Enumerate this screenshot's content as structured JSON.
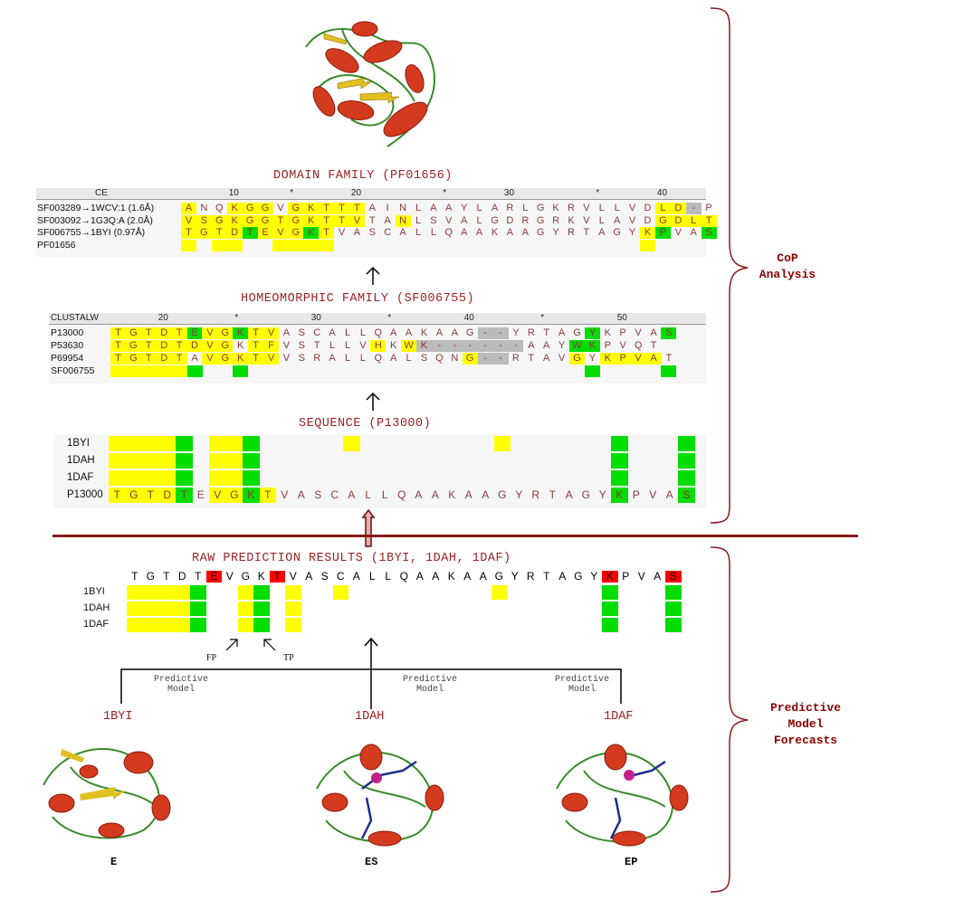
{
  "titles": {
    "domain": "DOMAIN FAMILY (PF01656)",
    "homeo": "HOMEOMORPHIC FAMILY (SF006755)",
    "sequence": "SEQUENCE (P13000)",
    "raw": "RAW PREDICTION RESULTS (1BYI, 1DAH, 1DAF)"
  },
  "side_labels": {
    "cop": "CoP\nAnalysis",
    "predictive": "Predictive\nModel\nForecasts"
  },
  "domain_panel": {
    "ruler_label": "CE",
    "ruler_marks": [
      "10",
      "*",
      "20",
      "*",
      "30",
      "*",
      "40"
    ],
    "rows": [
      {
        "label": "SF003289→1WCV:1 (1.6Å)",
        "seq": "ANQKGGVGKTTTAINLAAYLARLGKRVLLVDLD-P"
      },
      {
        "label": "SF003092→1G3Q:A (2.0Å)",
        "seq": "VSGKGGTGKTTVTANLSVALGDRGRKVLAVDGDLT"
      },
      {
        "label": "SF006755→1BYI (0.97Å)",
        "seq": "TGTDTEVGKTVASCALLQAAKAAGYRTAGYKPVAS"
      },
      {
        "label": "PF01656",
        "seq": ""
      }
    ]
  },
  "homeo_panel": {
    "ruler_label": "CLUSTALW",
    "ruler_marks": [
      "20",
      "*",
      "30",
      "*",
      "40",
      "*",
      "50"
    ],
    "rows": [
      {
        "label": "P13000",
        "seq": "TGTDTEVGKTVASCALLQAAKAAG--YRTAGYKPVAS"
      },
      {
        "label": "P53630",
        "seq": "TGTDTDVGKTFVSTLLVHKWK------AAYWKPVQT"
      },
      {
        "label": "P69954",
        "seq": "TGTDTAVGKTVVSRALLQALSQNG--RTAVGYKPVAT"
      },
      {
        "label": "SF006755",
        "seq": ""
      }
    ]
  },
  "sequence_panel": {
    "rows": [
      "1BYI",
      "1DAH",
      "1DAF",
      "P13000"
    ],
    "seq": "TGTDTEVGKTVASCALLQAAKAAGYRTAGYKPVAS"
  },
  "raw_panel": {
    "seq": "TGTDTEVGKTVASCALLQAAKAAGYRTAGYKPVAS",
    "rows": [
      "1BYI",
      "1DAH",
      "1DAF"
    ],
    "fp": "FP",
    "tp": "TP"
  },
  "models": {
    "note": "Predictive\nModel",
    "structures": [
      {
        "id": "1BYI",
        "state": "E"
      },
      {
        "id": "1DAH",
        "state": "ES"
      },
      {
        "id": "1DAF",
        "state": "EP"
      }
    ]
  },
  "colors": {
    "title": "#9b2323",
    "divider": "#8b1a1a",
    "highlight": "#ffff00",
    "conserved": "#00dd00",
    "hit": "#ff0000"
  }
}
